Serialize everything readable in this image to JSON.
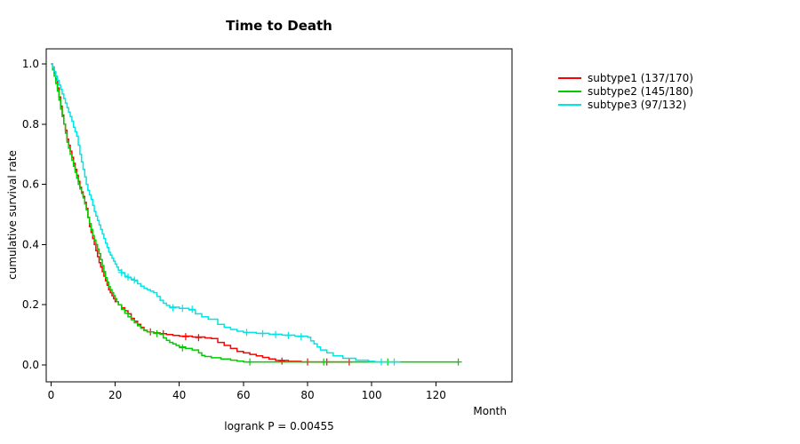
{
  "chart_data": {
    "type": "line",
    "subtype": "kaplan-meier-step-survival",
    "title": "Time to Death",
    "xlabel": "Month",
    "ylabel": "cumulative survival rate",
    "annotation": "logrank P = 0.00455",
    "xlim": [
      0,
      135
    ],
    "ylim": [
      0,
      1.0
    ],
    "xticks": [
      "0",
      "20",
      "40",
      "60",
      "80",
      "100",
      "120"
    ],
    "yticks": [
      "0.0",
      "0.2",
      "0.4",
      "0.6",
      "0.8",
      "1.0"
    ],
    "grid": false,
    "legend_position": "top-right-outside",
    "series": [
      {
        "name": "subtype1 (137/170)",
        "color": "#FF0000",
        "points": [
          [
            0,
            1.0
          ],
          [
            0.5,
            0.99
          ],
          [
            1,
            0.97
          ],
          [
            1.5,
            0.95
          ],
          [
            2,
            0.92
          ],
          [
            2.5,
            0.89
          ],
          [
            3,
            0.86
          ],
          [
            3.5,
            0.83
          ],
          [
            4,
            0.8
          ],
          [
            4.5,
            0.78
          ],
          [
            5,
            0.75
          ],
          [
            5.5,
            0.73
          ],
          [
            6,
            0.71
          ],
          [
            6.5,
            0.69
          ],
          [
            7,
            0.67
          ],
          [
            7.5,
            0.65
          ],
          [
            8,
            0.63
          ],
          [
            8.5,
            0.61
          ],
          [
            9,
            0.59
          ],
          [
            9.5,
            0.575
          ],
          [
            10,
            0.56
          ],
          [
            10.5,
            0.54
          ],
          [
            11,
            0.52
          ],
          [
            11.5,
            0.49
          ],
          [
            12,
            0.46
          ],
          [
            12.5,
            0.44
          ],
          [
            13,
            0.42
          ],
          [
            13.5,
            0.4
          ],
          [
            14,
            0.38
          ],
          [
            14.5,
            0.36
          ],
          [
            15,
            0.34
          ],
          [
            15.5,
            0.325
          ],
          [
            16,
            0.31
          ],
          [
            16.5,
            0.295
          ],
          [
            17,
            0.28
          ],
          [
            17.5,
            0.265
          ],
          [
            18,
            0.25
          ],
          [
            18.5,
            0.24
          ],
          [
            19,
            0.23
          ],
          [
            19.5,
            0.22
          ],
          [
            20,
            0.21
          ],
          [
            21,
            0.2
          ],
          [
            22,
            0.19
          ],
          [
            23,
            0.18
          ],
          [
            24,
            0.17
          ],
          [
            25,
            0.155
          ],
          [
            26,
            0.145
          ],
          [
            27,
            0.135
          ],
          [
            28,
            0.125
          ],
          [
            29,
            0.115
          ],
          [
            30,
            0.11
          ],
          [
            32,
            0.107
          ],
          [
            34,
            0.104
          ],
          [
            36,
            0.101
          ],
          [
            38,
            0.098
          ],
          [
            40,
            0.096
          ],
          [
            44,
            0.093
          ],
          [
            48,
            0.09
          ],
          [
            50,
            0.088
          ],
          [
            52,
            0.075
          ],
          [
            54,
            0.065
          ],
          [
            56,
            0.055
          ],
          [
            58,
            0.045
          ],
          [
            60,
            0.04
          ],
          [
            62,
            0.035
          ],
          [
            64,
            0.03
          ],
          [
            66,
            0.025
          ],
          [
            68,
            0.02
          ],
          [
            70,
            0.015
          ],
          [
            74,
            0.012
          ],
          [
            78,
            0.01
          ],
          [
            93,
            0.01
          ]
        ],
        "censors": [
          [
            31,
            0.11
          ],
          [
            35,
            0.104
          ],
          [
            42,
            0.094
          ],
          [
            46,
            0.091
          ],
          [
            72,
            0.013
          ],
          [
            80,
            0.01
          ],
          [
            86,
            0.01
          ],
          [
            93,
            0.01
          ]
        ]
      },
      {
        "name": "subtype2 (145/180)",
        "color": "#00CD00",
        "points": [
          [
            0,
            1.0
          ],
          [
            0.5,
            0.98
          ],
          [
            1,
            0.96
          ],
          [
            1.5,
            0.935
          ],
          [
            2,
            0.91
          ],
          [
            2.5,
            0.88
          ],
          [
            3,
            0.85
          ],
          [
            3.5,
            0.825
          ],
          [
            4,
            0.8
          ],
          [
            4.5,
            0.77
          ],
          [
            5,
            0.74
          ],
          [
            5.5,
            0.72
          ],
          [
            6,
            0.7
          ],
          [
            6.5,
            0.68
          ],
          [
            7,
            0.66
          ],
          [
            7.5,
            0.64
          ],
          [
            8,
            0.62
          ],
          [
            8.5,
            0.6
          ],
          [
            9,
            0.585
          ],
          [
            9.5,
            0.57
          ],
          [
            10,
            0.555
          ],
          [
            10.5,
            0.535
          ],
          [
            11,
            0.515
          ],
          [
            11.5,
            0.49
          ],
          [
            12,
            0.47
          ],
          [
            12.5,
            0.45
          ],
          [
            13,
            0.43
          ],
          [
            13.5,
            0.415
          ],
          [
            14,
            0.4
          ],
          [
            14.5,
            0.385
          ],
          [
            15,
            0.37
          ],
          [
            15.5,
            0.35
          ],
          [
            16,
            0.33
          ],
          [
            16.5,
            0.31
          ],
          [
            17,
            0.29
          ],
          [
            17.5,
            0.275
          ],
          [
            18,
            0.26
          ],
          [
            18.5,
            0.25
          ],
          [
            19,
            0.24
          ],
          [
            19.5,
            0.23
          ],
          [
            20,
            0.22
          ],
          [
            20.5,
            0.21
          ],
          [
            21,
            0.2
          ],
          [
            22,
            0.185
          ],
          [
            23,
            0.172
          ],
          [
            24,
            0.16
          ],
          [
            25,
            0.15
          ],
          [
            26,
            0.14
          ],
          [
            27,
            0.13
          ],
          [
            28,
            0.122
          ],
          [
            29,
            0.115
          ],
          [
            30,
            0.11
          ],
          [
            32,
            0.106
          ],
          [
            34,
            0.102
          ],
          [
            35,
            0.09
          ],
          [
            36,
            0.082
          ],
          [
            37,
            0.075
          ],
          [
            38,
            0.07
          ],
          [
            39,
            0.065
          ],
          [
            40,
            0.06
          ],
          [
            42,
            0.055
          ],
          [
            44,
            0.05
          ],
          [
            46,
            0.04
          ],
          [
            47,
            0.032
          ],
          [
            48,
            0.028
          ],
          [
            50,
            0.024
          ],
          [
            53,
            0.02
          ],
          [
            56,
            0.016
          ],
          [
            58,
            0.013
          ],
          [
            60,
            0.01
          ],
          [
            127,
            0.01
          ]
        ],
        "censors": [
          [
            33,
            0.104
          ],
          [
            41,
            0.057
          ],
          [
            62,
            0.01
          ],
          [
            85,
            0.01
          ],
          [
            105,
            0.01
          ],
          [
            127,
            0.01
          ]
        ]
      },
      {
        "name": "subtype3 (97/132)",
        "color": "#00E5E5",
        "points": [
          [
            0,
            1.0
          ],
          [
            0.5,
            0.99
          ],
          [
            1,
            0.975
          ],
          [
            1.5,
            0.96
          ],
          [
            2,
            0.945
          ],
          [
            2.5,
            0.93
          ],
          [
            3,
            0.915
          ],
          [
            3.5,
            0.9
          ],
          [
            4,
            0.885
          ],
          [
            4.5,
            0.87
          ],
          [
            5,
            0.855
          ],
          [
            5.5,
            0.84
          ],
          [
            6,
            0.825
          ],
          [
            6.5,
            0.81
          ],
          [
            7,
            0.79
          ],
          [
            7.5,
            0.775
          ],
          [
            8,
            0.76
          ],
          [
            8.5,
            0.73
          ],
          [
            9,
            0.7
          ],
          [
            9.5,
            0.675
          ],
          [
            10,
            0.65
          ],
          [
            10.5,
            0.625
          ],
          [
            11,
            0.6
          ],
          [
            11.5,
            0.58
          ],
          [
            12,
            0.565
          ],
          [
            12.5,
            0.55
          ],
          [
            13,
            0.53
          ],
          [
            13.5,
            0.51
          ],
          [
            14,
            0.495
          ],
          [
            14.5,
            0.48
          ],
          [
            15,
            0.465
          ],
          [
            15.5,
            0.45
          ],
          [
            16,
            0.435
          ],
          [
            16.5,
            0.42
          ],
          [
            17,
            0.405
          ],
          [
            17.5,
            0.39
          ],
          [
            18,
            0.375
          ],
          [
            18.5,
            0.365
          ],
          [
            19,
            0.355
          ],
          [
            19.5,
            0.345
          ],
          [
            20,
            0.335
          ],
          [
            20.5,
            0.325
          ],
          [
            21,
            0.315
          ],
          [
            22,
            0.305
          ],
          [
            23,
            0.295
          ],
          [
            24,
            0.29
          ],
          [
            25,
            0.285
          ],
          [
            26,
            0.28
          ],
          [
            27,
            0.27
          ],
          [
            28,
            0.262
          ],
          [
            29,
            0.255
          ],
          [
            30,
            0.25
          ],
          [
            31,
            0.245
          ],
          [
            32,
            0.24
          ],
          [
            33,
            0.228
          ],
          [
            34,
            0.215
          ],
          [
            35,
            0.205
          ],
          [
            36,
            0.198
          ],
          [
            37,
            0.192
          ],
          [
            40,
            0.188
          ],
          [
            43,
            0.183
          ],
          [
            45,
            0.17
          ],
          [
            47,
            0.16
          ],
          [
            49,
            0.152
          ],
          [
            52,
            0.135
          ],
          [
            54,
            0.125
          ],
          [
            56,
            0.118
          ],
          [
            58,
            0.112
          ],
          [
            60,
            0.108
          ],
          [
            64,
            0.105
          ],
          [
            68,
            0.102
          ],
          [
            72,
            0.099
          ],
          [
            76,
            0.096
          ],
          [
            80,
            0.092
          ],
          [
            81,
            0.08
          ],
          [
            82,
            0.07
          ],
          [
            83,
            0.06
          ],
          [
            84,
            0.05
          ],
          [
            86,
            0.04
          ],
          [
            88,
            0.03
          ],
          [
            91,
            0.022
          ],
          [
            95,
            0.016
          ],
          [
            99,
            0.012
          ],
          [
            101,
            0.01
          ],
          [
            109,
            0.01
          ]
        ],
        "censors": [
          [
            22,
            0.307
          ],
          [
            24,
            0.292
          ],
          [
            26,
            0.282
          ],
          [
            38,
            0.19
          ],
          [
            41,
            0.188
          ],
          [
            44,
            0.185
          ],
          [
            61,
            0.108
          ],
          [
            66,
            0.104
          ],
          [
            70,
            0.101
          ],
          [
            74,
            0.098
          ],
          [
            78,
            0.094
          ],
          [
            103,
            0.01
          ],
          [
            107,
            0.01
          ]
        ]
      }
    ]
  }
}
